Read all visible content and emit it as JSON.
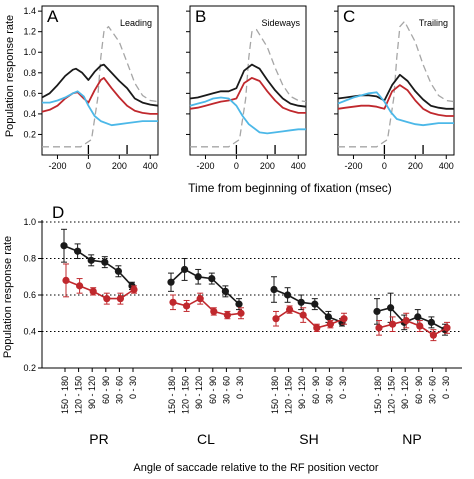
{
  "top_ylabel": "Population response rate",
  "top_xlabel": "Time from beginning of fixation (msec)",
  "bottom_ylabel": "Population response rate",
  "bottom_xlabel": "Angle of saccade relative to the RF position vector",
  "colors": {
    "black_series": "#1a1a1a",
    "red_series": "#c0282d",
    "cyan_series": "#4cb8e8",
    "gray_series": "#a6a6a6"
  },
  "chart_data": [
    {
      "type": "line",
      "panel": "A",
      "inset_label": "Leading",
      "x_ticks": [
        "-200",
        "0",
        "200",
        "400"
      ],
      "y_ticks": [
        "0.2",
        "0.4",
        "0.6",
        "0.8",
        "1.0",
        "1.2",
        "1.4"
      ],
      "xlim": [
        -300,
        450
      ],
      "ylim": [
        0.0,
        1.45
      ],
      "series": [
        {
          "color_key": "gray_series",
          "dash": true,
          "points": [
            [
              -300,
              0.08
            ],
            [
              -200,
              0.08
            ],
            [
              -50,
              0.08
            ],
            [
              20,
              0.15
            ],
            [
              60,
              0.55
            ],
            [
              80,
              0.95
            ],
            [
              100,
              1.2
            ],
            [
              130,
              1.25
            ],
            [
              200,
              1.1
            ],
            [
              250,
              0.9
            ],
            [
              300,
              0.7
            ],
            [
              350,
              0.58
            ],
            [
              400,
              0.53
            ],
            [
              450,
              0.52
            ]
          ]
        },
        {
          "color_key": "black_series",
          "points": [
            [
              -300,
              0.56
            ],
            [
              -250,
              0.6
            ],
            [
              -200,
              0.68
            ],
            [
              -150,
              0.77
            ],
            [
              -100,
              0.83
            ],
            [
              -80,
              0.84
            ],
            [
              -40,
              0.8
            ],
            [
              0,
              0.73
            ],
            [
              40,
              0.81
            ],
            [
              80,
              0.87
            ],
            [
              100,
              0.88
            ],
            [
              150,
              0.8
            ],
            [
              200,
              0.72
            ],
            [
              250,
              0.65
            ],
            [
              300,
              0.55
            ],
            [
              350,
              0.51
            ],
            [
              400,
              0.49
            ],
            [
              450,
              0.48
            ]
          ]
        },
        {
          "color_key": "red_series",
          "points": [
            [
              -300,
              0.42
            ],
            [
              -250,
              0.44
            ],
            [
              -200,
              0.48
            ],
            [
              -150,
              0.55
            ],
            [
              -100,
              0.6
            ],
            [
              -70,
              0.61
            ],
            [
              -30,
              0.55
            ],
            [
              0,
              0.51
            ],
            [
              40,
              0.63
            ],
            [
              80,
              0.73
            ],
            [
              100,
              0.75
            ],
            [
              150,
              0.65
            ],
            [
              200,
              0.56
            ],
            [
              250,
              0.48
            ],
            [
              300,
              0.43
            ],
            [
              350,
              0.41
            ],
            [
              400,
              0.4
            ],
            [
              450,
              0.4
            ]
          ]
        },
        {
          "color_key": "cyan_series",
          "points": [
            [
              -300,
              0.51
            ],
            [
              -250,
              0.51
            ],
            [
              -200,
              0.53
            ],
            [
              -150,
              0.56
            ],
            [
              -100,
              0.6
            ],
            [
              -70,
              0.62
            ],
            [
              -30,
              0.57
            ],
            [
              0,
              0.48
            ],
            [
              40,
              0.38
            ],
            [
              80,
              0.33
            ],
            [
              150,
              0.29
            ],
            [
              200,
              0.3
            ],
            [
              250,
              0.31
            ],
            [
              300,
              0.32
            ],
            [
              350,
              0.33
            ],
            [
              400,
              0.33
            ],
            [
              450,
              0.33
            ]
          ]
        }
      ],
      "markers": [
        0,
        250
      ]
    },
    {
      "type": "line",
      "panel": "B",
      "inset_label": "Sideways",
      "x_ticks": [
        "-200",
        "0",
        "200",
        "400"
      ],
      "xlim": [
        -300,
        450
      ],
      "ylim": [
        0.0,
        1.45
      ],
      "series": [
        {
          "color_key": "gray_series",
          "dash": true,
          "points": [
            [
              -300,
              0.08
            ],
            [
              -200,
              0.08
            ],
            [
              -50,
              0.08
            ],
            [
              20,
              0.15
            ],
            [
              60,
              0.55
            ],
            [
              80,
              0.95
            ],
            [
              100,
              1.2
            ],
            [
              130,
              1.22
            ],
            [
              200,
              1.05
            ],
            [
              250,
              0.85
            ],
            [
              300,
              0.68
            ],
            [
              350,
              0.57
            ],
            [
              400,
              0.53
            ],
            [
              450,
              0.52
            ]
          ]
        },
        {
          "color_key": "black_series",
          "points": [
            [
              -300,
              0.55
            ],
            [
              -250,
              0.56
            ],
            [
              -200,
              0.58
            ],
            [
              -150,
              0.6
            ],
            [
              -100,
              0.62
            ],
            [
              -50,
              0.62
            ],
            [
              0,
              0.65
            ],
            [
              50,
              0.82
            ],
            [
              100,
              0.88
            ],
            [
              150,
              0.84
            ],
            [
              200,
              0.73
            ],
            [
              250,
              0.63
            ],
            [
              300,
              0.55
            ],
            [
              350,
              0.5
            ],
            [
              400,
              0.48
            ],
            [
              450,
              0.47
            ]
          ]
        },
        {
          "color_key": "red_series",
          "points": [
            [
              -300,
              0.45
            ],
            [
              -250,
              0.46
            ],
            [
              -200,
              0.48
            ],
            [
              -150,
              0.5
            ],
            [
              -100,
              0.52
            ],
            [
              -50,
              0.53
            ],
            [
              0,
              0.55
            ],
            [
              50,
              0.7
            ],
            [
              100,
              0.75
            ],
            [
              150,
              0.72
            ],
            [
              200,
              0.62
            ],
            [
              250,
              0.53
            ],
            [
              300,
              0.46
            ],
            [
              350,
              0.43
            ],
            [
              400,
              0.41
            ],
            [
              450,
              0.41
            ]
          ]
        },
        {
          "color_key": "cyan_series",
          "points": [
            [
              -300,
              0.48
            ],
            [
              -250,
              0.5
            ],
            [
              -200,
              0.52
            ],
            [
              -150,
              0.55
            ],
            [
              -100,
              0.56
            ],
            [
              -50,
              0.55
            ],
            [
              0,
              0.48
            ],
            [
              40,
              0.38
            ],
            [
              80,
              0.3
            ],
            [
              150,
              0.22
            ],
            [
              200,
              0.21
            ],
            [
              250,
              0.22
            ],
            [
              300,
              0.23
            ],
            [
              350,
              0.24
            ],
            [
              400,
              0.25
            ],
            [
              450,
              0.25
            ]
          ]
        }
      ],
      "markers": [
        0,
        250
      ]
    },
    {
      "type": "line",
      "panel": "C",
      "inset_label": "Trailing",
      "x_ticks": [
        "-200",
        "0",
        "200",
        "400"
      ],
      "xlim": [
        -300,
        450
      ],
      "ylim": [
        0.0,
        1.45
      ],
      "series": [
        {
          "color_key": "gray_series",
          "dash": true,
          "points": [
            [
              -300,
              0.08
            ],
            [
              -200,
              0.08
            ],
            [
              -50,
              0.08
            ],
            [
              20,
              0.15
            ],
            [
              60,
              0.55
            ],
            [
              80,
              0.95
            ],
            [
              100,
              1.25
            ],
            [
              130,
              1.3
            ],
            [
              200,
              1.1
            ],
            [
              250,
              0.88
            ],
            [
              300,
              0.7
            ],
            [
              350,
              0.58
            ],
            [
              400,
              0.53
            ],
            [
              450,
              0.52
            ]
          ]
        },
        {
          "color_key": "black_series",
          "points": [
            [
              -300,
              0.55
            ],
            [
              -250,
              0.56
            ],
            [
              -200,
              0.57
            ],
            [
              -150,
              0.58
            ],
            [
              -100,
              0.58
            ],
            [
              -50,
              0.57
            ],
            [
              0,
              0.53
            ],
            [
              50,
              0.68
            ],
            [
              100,
              0.78
            ],
            [
              150,
              0.72
            ],
            [
              200,
              0.62
            ],
            [
              250,
              0.54
            ],
            [
              300,
              0.48
            ],
            [
              350,
              0.46
            ],
            [
              400,
              0.45
            ],
            [
              450,
              0.45
            ]
          ]
        },
        {
          "color_key": "red_series",
          "points": [
            [
              -300,
              0.45
            ],
            [
              -250,
              0.46
            ],
            [
              -200,
              0.47
            ],
            [
              -150,
              0.48
            ],
            [
              -100,
              0.48
            ],
            [
              -50,
              0.47
            ],
            [
              0,
              0.45
            ],
            [
              50,
              0.62
            ],
            [
              100,
              0.68
            ],
            [
              150,
              0.63
            ],
            [
              200,
              0.53
            ],
            [
              250,
              0.45
            ],
            [
              300,
              0.41
            ],
            [
              350,
              0.39
            ],
            [
              400,
              0.38
            ],
            [
              450,
              0.38
            ]
          ]
        },
        {
          "color_key": "cyan_series",
          "points": [
            [
              -300,
              0.5
            ],
            [
              -250,
              0.53
            ],
            [
              -200,
              0.56
            ],
            [
              -150,
              0.58
            ],
            [
              -100,
              0.6
            ],
            [
              -50,
              0.61
            ],
            [
              0,
              0.52
            ],
            [
              40,
              0.42
            ],
            [
              80,
              0.35
            ],
            [
              150,
              0.32
            ],
            [
              200,
              0.3
            ],
            [
              250,
              0.29
            ],
            [
              300,
              0.3
            ],
            [
              350,
              0.31
            ],
            [
              400,
              0.31
            ],
            [
              450,
              0.31
            ]
          ]
        }
      ],
      "markers": [
        0,
        250
      ]
    },
    {
      "type": "line",
      "panel": "D",
      "ylim": [
        0.2,
        1.0
      ],
      "y_ticks": [
        "0.2",
        "0.4",
        "0.6",
        "0.8",
        "1.0"
      ],
      "gridlines_y": [
        0.4,
        0.6,
        0.8,
        1.0
      ],
      "category_labels": [
        "150 - 180",
        "120 - 150",
        "90 - 120",
        "60 - 90",
        "30 - 60",
        "0 - 30"
      ],
      "groups": [
        {
          "name": "PR",
          "series": [
            {
              "color_key": "black_series",
              "values": [
                0.87,
                0.84,
                0.79,
                0.78,
                0.73,
                0.65
              ],
              "errors": [
                0.09,
                0.04,
                0.03,
                0.03,
                0.03,
                0.02
              ]
            },
            {
              "color_key": "red_series",
              "values": [
                0.68,
                0.65,
                0.62,
                0.58,
                0.58,
                0.63
              ],
              "errors": [
                0.09,
                0.04,
                0.02,
                0.03,
                0.03,
                0.02
              ]
            }
          ]
        },
        {
          "name": "CL",
          "series": [
            {
              "color_key": "black_series",
              "values": [
                0.67,
                0.74,
                0.7,
                0.69,
                0.62,
                0.55
              ],
              "errors": [
                0.05,
                0.06,
                0.04,
                0.03,
                0.03,
                0.03
              ]
            },
            {
              "color_key": "red_series",
              "values": [
                0.56,
                0.54,
                0.58,
                0.51,
                0.49,
                0.5
              ],
              "errors": [
                0.04,
                0.03,
                0.03,
                0.02,
                0.02,
                0.03
              ]
            }
          ]
        },
        {
          "name": "SH",
          "series": [
            {
              "color_key": "black_series",
              "values": [
                0.63,
                0.6,
                0.56,
                0.55,
                0.48,
                0.45
              ],
              "errors": [
                0.07,
                0.04,
                0.04,
                0.03,
                0.03,
                0.02
              ]
            },
            {
              "color_key": "red_series",
              "values": [
                0.47,
                0.52,
                0.49,
                0.42,
                0.44,
                0.47
              ],
              "errors": [
                0.04,
                0.02,
                0.04,
                0.02,
                0.02,
                0.03
              ]
            }
          ]
        },
        {
          "name": "NP",
          "series": [
            {
              "color_key": "black_series",
              "values": [
                0.51,
                0.53,
                0.45,
                0.48,
                0.45,
                0.41
              ],
              "errors": [
                0.07,
                0.08,
                0.04,
                0.04,
                0.03,
                0.03
              ]
            },
            {
              "color_key": "red_series",
              "values": [
                0.42,
                0.44,
                0.46,
                0.43,
                0.38,
                0.42
              ],
              "errors": [
                0.04,
                0.04,
                0.04,
                0.03,
                0.03,
                0.03
              ]
            }
          ]
        }
      ]
    }
  ]
}
